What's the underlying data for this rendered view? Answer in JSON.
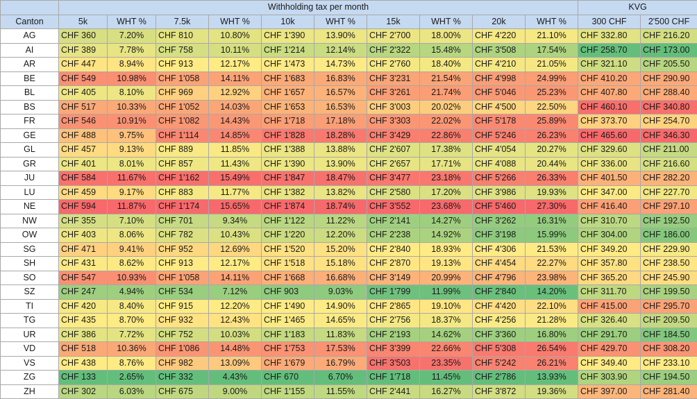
{
  "headers": {
    "group_wht": "Withholding tax per month",
    "group_kvg": "KVG",
    "columns": [
      "Canton",
      "5k",
      "WHT %",
      "7.5k",
      "WHT %",
      "10k",
      "WHT %",
      "15k",
      "WHT %",
      "20k",
      "WHT %",
      "300 CHF",
      "2'500 CHF"
    ]
  },
  "rows": [
    {
      "canton": "AG",
      "cells": [
        "CHF 360",
        "7.20%",
        "CHF 810",
        "10.80%",
        "CHF 1'390",
        "13.90%",
        "CHF 2'700",
        "18.00%",
        "CHF 4'220",
        "21.10%",
        "CHF 332.80",
        "CHF 216.20"
      ]
    },
    {
      "canton": "AI",
      "cells": [
        "CHF 389",
        "7.78%",
        "CHF 758",
        "10.11%",
        "CHF 1'214",
        "12.14%",
        "CHF 2'322",
        "15.48%",
        "CHF 3'508",
        "17.54%",
        "CHF 258.70",
        "CHF 173.00"
      ]
    },
    {
      "canton": "AR",
      "cells": [
        "CHF 447",
        "8.94%",
        "CHF 913",
        "12.17%",
        "CHF 1'473",
        "14.73%",
        "CHF 2'760",
        "18.40%",
        "CHF 4'210",
        "21.05%",
        "CHF 321.10",
        "CHF 205.50"
      ]
    },
    {
      "canton": "BE",
      "cells": [
        "CHF 549",
        "10.98%",
        "CHF 1'058",
        "14.11%",
        "CHF 1'683",
        "16.83%",
        "CHF 3'231",
        "21.54%",
        "CHF 4'998",
        "24.99%",
        "CHF 410.20",
        "CHF 290.90"
      ]
    },
    {
      "canton": "BL",
      "cells": [
        "CHF 405",
        "8.10%",
        "CHF 969",
        "12.92%",
        "CHF 1'657",
        "16.57%",
        "CHF 3'261",
        "21.74%",
        "CHF 5'046",
        "25.23%",
        "CHF 407.80",
        "CHF 288.40"
      ]
    },
    {
      "canton": "BS",
      "cells": [
        "CHF 517",
        "10.33%",
        "CHF 1'052",
        "14.03%",
        "CHF 1'653",
        "16.53%",
        "CHF 3'003",
        "20.02%",
        "CHF 4'500",
        "22.50%",
        "CHF 460.10",
        "CHF 340.80"
      ]
    },
    {
      "canton": "FR",
      "cells": [
        "CHF 546",
        "10.91%",
        "CHF 1'082",
        "14.43%",
        "CHF 1'718",
        "17.18%",
        "CHF 3'303",
        "22.02%",
        "CHF 5'178",
        "25.89%",
        "CHF 373.70",
        "CHF 254.70"
      ]
    },
    {
      "canton": "GE",
      "cells": [
        "CHF 488",
        "9.75%",
        "CHF 1'114",
        "14.85%",
        "CHF 1'828",
        "18.28%",
        "CHF 3'429",
        "22.86%",
        "CHF 5'246",
        "26.23%",
        "CHF 465.60",
        "CHF 346.30"
      ]
    },
    {
      "canton": "GL",
      "cells": [
        "CHF 457",
        "9.13%",
        "CHF 889",
        "11.85%",
        "CHF 1'388",
        "13.88%",
        "CHF 2'607",
        "17.38%",
        "CHF 4'054",
        "20.27%",
        "CHF 329.60",
        "CHF 211.00"
      ]
    },
    {
      "canton": "GR",
      "cells": [
        "CHF 401",
        "8.01%",
        "CHF 857",
        "11.43%",
        "CHF 1'390",
        "13.90%",
        "CHF 2'657",
        "17.71%",
        "CHF 4'088",
        "20.44%",
        "CHF 336.00",
        "CHF 216.60"
      ]
    },
    {
      "canton": "JU",
      "cells": [
        "CHF 584",
        "11.67%",
        "CHF 1'162",
        "15.49%",
        "CHF 1'847",
        "18.47%",
        "CHF 3'477",
        "23.18%",
        "CHF 5'266",
        "26.33%",
        "CHF 401.50",
        "CHF 282.20"
      ]
    },
    {
      "canton": "LU",
      "cells": [
        "CHF 459",
        "9.17%",
        "CHF 883",
        "11.77%",
        "CHF 1'382",
        "13.82%",
        "CHF 2'580",
        "17.20%",
        "CHF 3'986",
        "19.93%",
        "CHF 347.00",
        "CHF 227.70"
      ]
    },
    {
      "canton": "NE",
      "cells": [
        "CHF 594",
        "11.87%",
        "CHF 1'174",
        "15.65%",
        "CHF 1'874",
        "18.74%",
        "CHF 3'552",
        "23.68%",
        "CHF 5'460",
        "27.30%",
        "CHF 416.40",
        "CHF 297.10"
      ]
    },
    {
      "canton": "NW",
      "cells": [
        "CHF 355",
        "7.10%",
        "CHF 701",
        "9.34%",
        "CHF 1'122",
        "11.22%",
        "CHF 2'141",
        "14.27%",
        "CHF 3'262",
        "16.31%",
        "CHF 310.70",
        "CHF 192.50"
      ]
    },
    {
      "canton": "OW",
      "cells": [
        "CHF 403",
        "8.06%",
        "CHF 782",
        "10.43%",
        "CHF 1'220",
        "12.20%",
        "CHF 2'238",
        "14.92%",
        "CHF 3'198",
        "15.99%",
        "CHF 304.00",
        "CHF 186.00"
      ]
    },
    {
      "canton": "SG",
      "cells": [
        "CHF 471",
        "9.41%",
        "CHF 952",
        "12.69%",
        "CHF 1'520",
        "15.20%",
        "CHF 2'840",
        "18.93%",
        "CHF 4'306",
        "21.53%",
        "CHF 349.20",
        "CHF 229.90"
      ]
    },
    {
      "canton": "SH",
      "cells": [
        "CHF 431",
        "8.62%",
        "CHF 913",
        "12.17%",
        "CHF 1'518",
        "15.18%",
        "CHF 2'870",
        "19.13%",
        "CHF 4'454",
        "22.27%",
        "CHF 357.80",
        "CHF 238.50"
      ]
    },
    {
      "canton": "SO",
      "cells": [
        "CHF 547",
        "10.93%",
        "CHF 1'058",
        "14.11%",
        "CHF 1'668",
        "16.68%",
        "CHF 3'149",
        "20.99%",
        "CHF 4'796",
        "23.98%",
        "CHF 365.20",
        "CHF 245.90"
      ]
    },
    {
      "canton": "SZ",
      "cells": [
        "CHF 247",
        "4.94%",
        "CHF 534",
        "7.12%",
        "CHF 903",
        "9.03%",
        "CHF 1'799",
        "11.99%",
        "CHF 2'840",
        "14.20%",
        "CHF 311.70",
        "CHF 199.50"
      ]
    },
    {
      "canton": "TI",
      "cells": [
        "CHF 420",
        "8.40%",
        "CHF 915",
        "12.20%",
        "CHF 1'490",
        "14.90%",
        "CHF 2'865",
        "19.10%",
        "CHF 4'420",
        "22.10%",
        "CHF 415.00",
        "CHF 295.70"
      ]
    },
    {
      "canton": "TG",
      "cells": [
        "CHF 435",
        "8.70%",
        "CHF 932",
        "12.43%",
        "CHF 1'465",
        "14.65%",
        "CHF 2'756",
        "18.37%",
        "CHF 4'256",
        "21.28%",
        "CHF 326.40",
        "CHF 209.50"
      ]
    },
    {
      "canton": "UR",
      "cells": [
        "CHF 386",
        "7.72%",
        "CHF 752",
        "10.03%",
        "CHF 1'183",
        "11.83%",
        "CHF 2'193",
        "14.62%",
        "CHF 3'360",
        "16.80%",
        "CHF 291.70",
        "CHF 184.50"
      ]
    },
    {
      "canton": "VD",
      "cells": [
        "CHF 518",
        "10.36%",
        "CHF 1'086",
        "14.48%",
        "CHF 1'753",
        "17.53%",
        "CHF 3'399",
        "22.66%",
        "CHF 5'308",
        "26.54%",
        "CHF 429.70",
        "CHF 308.20"
      ]
    },
    {
      "canton": "VS",
      "cells": [
        "CHF 438",
        "8.76%",
        "CHF 982",
        "13.09%",
        "CHF 1'679",
        "16.79%",
        "CHF 3'503",
        "23.35%",
        "CHF 5'242",
        "26.21%",
        "CHF 349.40",
        "CHF 233.10"
      ]
    },
    {
      "canton": "ZG",
      "cells": [
        "CHF 133",
        "2.65%",
        "CHF 332",
        "4.43%",
        "CHF 670",
        "6.70%",
        "CHF 1'718",
        "11.45%",
        "CHF 2'786",
        "13.93%",
        "CHF 303.90",
        "CHF 194.50"
      ]
    },
    {
      "canton": "ZH",
      "cells": [
        "CHF 302",
        "6.03%",
        "CHF 675",
        "9.00%",
        "CHF 1'155",
        "11.55%",
        "CHF 2'441",
        "16.27%",
        "CHF 3'872",
        "19.36%",
        "CHF 397.00",
        "CHF 281.40"
      ]
    }
  ],
  "colors": {
    "header_bg": "#c5d9f1",
    "scale_low": "#63be7b",
    "scale_mid": "#ffeb84",
    "scale_high": "#f8696b"
  }
}
